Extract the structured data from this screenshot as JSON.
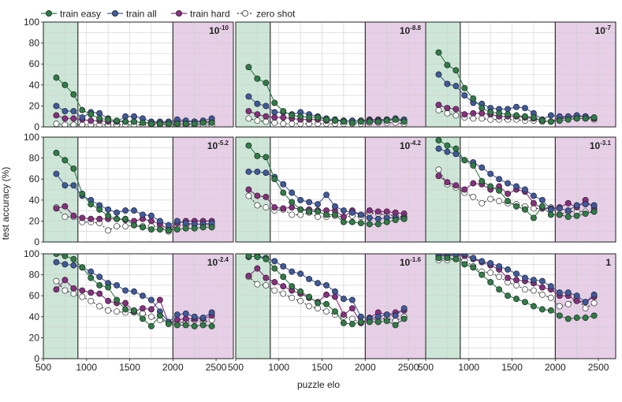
{
  "chart_data": {
    "type": "line",
    "layout": "3x3 grid of subplots",
    "xlabel": "puzzle elo",
    "ylabel": "test accuracy (%)",
    "xlim": [
      500,
      2700
    ],
    "ylim": [
      0,
      100
    ],
    "xticks": [
      500,
      1000,
      1500,
      2000,
      2500
    ],
    "yticks": [
      0,
      20,
      40,
      60,
      80,
      100
    ],
    "grid": true,
    "legend_position": "top-left, above plots",
    "shaded_regions": [
      {
        "from": 500,
        "to": 900,
        "color": "#cde6d7",
        "meaning_series": "train easy"
      },
      {
        "from": 2000,
        "to": 2700,
        "color": "#e7cfe7",
        "meaning_series": "train hard"
      }
    ],
    "legend": [
      {
        "label": "train easy",
        "color": "#2e7d46",
        "style": "solid"
      },
      {
        "label": "train all",
        "color": "#3f5a9e",
        "style": "solid"
      },
      {
        "label": "train hard",
        "color": "#8a2e82",
        "style": "solid"
      },
      {
        "label": "zero shot",
        "color": "#333333",
        "style": "dotted-open"
      }
    ],
    "x": [
      650,
      750,
      850,
      950,
      1050,
      1150,
      1250,
      1350,
      1450,
      1550,
      1650,
      1750,
      1850,
      1950,
      2050,
      2150,
      2250,
      2350,
      2450
    ],
    "panels": [
      {
        "label_base": "10",
        "label_exp": "-10",
        "series": [
          {
            "name": "train easy",
            "values": [
              47,
              40,
              31,
              16,
              12,
              8,
              7,
              6,
              5,
              5,
              4,
              3,
              3,
              3,
              3,
              3,
              3,
              4,
              4
            ]
          },
          {
            "name": "train all",
            "values": [
              20,
              15,
              15,
              9,
              14,
              13,
              8,
              5,
              10,
              10,
              8,
              5,
              5,
              5,
              7,
              6,
              5,
              6,
              8
            ]
          },
          {
            "name": "train hard",
            "values": [
              11,
              8,
              8,
              7,
              6,
              6,
              5,
              5,
              5,
              5,
              4,
              4,
              4,
              4,
              5,
              5,
              5,
              5,
              5
            ]
          },
          {
            "name": "zero shot",
            "values": [
              3,
              2,
              2,
              2,
              2,
              2,
              2,
              2,
              2,
              2,
              2,
              2,
              2,
              2,
              2,
              2,
              2,
              2,
              2
            ]
          }
        ]
      },
      {
        "label_base": "10",
        "label_exp": "-8.8",
        "series": [
          {
            "name": "train easy",
            "values": [
              57,
              46,
              42,
              23,
              15,
              11,
              10,
              9,
              9,
              7,
              6,
              5,
              4,
              5,
              5,
              5,
              6,
              7,
              5
            ]
          },
          {
            "name": "train all",
            "values": [
              29,
              22,
              20,
              14,
              14,
              12,
              14,
              12,
              10,
              8,
              7,
              6,
              6,
              6,
              6,
              6,
              7,
              8,
              7
            ]
          },
          {
            "name": "train hard",
            "values": [
              15,
              12,
              10,
              9,
              9,
              8,
              7,
              7,
              7,
              6,
              6,
              6,
              6,
              6,
              7,
              7,
              7,
              7,
              6
            ]
          },
          {
            "name": "zero shot",
            "values": [
              8,
              6,
              5,
              4,
              3,
              3,
              3,
              3,
              3,
              3,
              3,
              3,
              3,
              3,
              4,
              4,
              4,
              4,
              3
            ]
          }
        ]
      },
      {
        "label_base": "10",
        "label_exp": "-7",
        "series": [
          {
            "name": "train easy",
            "values": [
              71,
              59,
              54,
              37,
              27,
              18,
              14,
              13,
              12,
              11,
              10,
              9,
              6,
              5,
              6,
              7,
              8,
              8,
              9
            ]
          },
          {
            "name": "train all",
            "values": [
              50,
              41,
              39,
              30,
              23,
              22,
              18,
              17,
              17,
              19,
              18,
              13,
              7,
              11,
              10,
              10,
              11,
              10,
              9
            ]
          },
          {
            "name": "train hard",
            "values": [
              21,
              18,
              17,
              12,
              13,
              13,
              12,
              10,
              10,
              10,
              9,
              8,
              6,
              5,
              9,
              9,
              10,
              10,
              8
            ]
          },
          {
            "name": "zero shot",
            "values": [
              16,
              13,
              11,
              9,
              8,
              8,
              7,
              7,
              7,
              7,
              6,
              6,
              5,
              5,
              8,
              8,
              8,
              8,
              7
            ]
          }
        ]
      },
      {
        "label_base": "10",
        "label_exp": "-5.2",
        "series": [
          {
            "name": "train easy",
            "values": [
              85,
              78,
              70,
              46,
              36,
              31,
              25,
              22,
              22,
              16,
              14,
              12,
              12,
              11,
              12,
              13,
              13,
              14,
              14
            ]
          },
          {
            "name": "train all",
            "values": [
              65,
              54,
              54,
              44,
              40,
              35,
              31,
              28,
              30,
              30,
              26,
              25,
              20,
              16,
              20,
              18,
              17,
              17,
              18
            ]
          },
          {
            "name": "train hard",
            "values": [
              32,
              34,
              25,
              23,
              22,
              22,
              22,
              22,
              21,
              20,
              22,
              20,
              17,
              12,
              18,
              20,
              20,
              20,
              20
            ]
          },
          {
            "name": "zero shot",
            "values": [
              33,
              24,
              24,
              19,
              19,
              18,
              11,
              15,
              15,
              16,
              15,
              15,
              15,
              10,
              16,
              16,
              17,
              17,
              16
            ]
          }
        ]
      },
      {
        "label_base": "10",
        "label_exp": "-4.2",
        "series": [
          {
            "name": "train easy",
            "values": [
              92,
              82,
              81,
              60,
              47,
              38,
              31,
              29,
              29,
              26,
              26,
              19,
              19,
              18,
              17,
              17,
              19,
              21,
              22
            ]
          },
          {
            "name": "train all",
            "values": [
              67,
              67,
              66,
              62,
              55,
              47,
              40,
              38,
              36,
              45,
              34,
              30,
              28,
              26,
              23,
              22,
              23,
              23,
              23
            ]
          },
          {
            "name": "train hard",
            "values": [
              50,
              44,
              43,
              33,
              32,
              33,
              31,
              31,
              30,
              30,
              30,
              24,
              30,
              26,
              30,
              29,
              29,
              28,
              27
            ]
          },
          {
            "name": "zero shot",
            "values": [
              44,
              35,
              33,
              30,
              31,
              26,
              26,
              28,
              24,
              24,
              25,
              24,
              25,
              24,
              28,
              27,
              26,
              25,
              24
            ]
          }
        ]
      },
      {
        "label_base": "10",
        "label_exp": "-3.1",
        "series": [
          {
            "name": "train easy",
            "values": [
              97,
              92,
              89,
              78,
              73,
              58,
              53,
              49,
              39,
              34,
              31,
              23,
              34,
              26,
              26,
              24,
              25,
              27,
              29
            ]
          },
          {
            "name": "train all",
            "values": [
              89,
              86,
              84,
              78,
              76,
              71,
              65,
              60,
              56,
              53,
              50,
              44,
              40,
              31,
              32,
              30,
              35,
              36,
              35
            ]
          },
          {
            "name": "train hard",
            "values": [
              63,
              57,
              54,
              50,
              56,
              55,
              50,
              53,
              46,
              50,
              48,
              37,
              32,
              32,
              33,
              37,
              33,
              40,
              32
            ]
          },
          {
            "name": "zero shot",
            "values": [
              69,
              55,
              52,
              47,
              43,
              37,
              41,
              39,
              37,
              36,
              34,
              32,
              32,
              33,
              26,
              29,
              29,
              29,
              29
            ]
          }
        ]
      },
      {
        "label_base": "10",
        "label_exp": "-2.4",
        "series": [
          {
            "name": "train easy",
            "values": [
              100,
              98,
              95,
              87,
              77,
              70,
              68,
              56,
              47,
              46,
              38,
              31,
              41,
              33,
              32,
              32,
              31,
              32,
              31
            ]
          },
          {
            "name": "train all",
            "values": [
              92,
              90,
              89,
              87,
              83,
              78,
              72,
              70,
              65,
              64,
              60,
              56,
              45,
              35,
              42,
              43,
              40,
              39,
              44
            ]
          },
          {
            "name": "train hard",
            "values": [
              66,
              75,
              67,
              65,
              63,
              62,
              55,
              53,
              53,
              45,
              48,
              47,
              56,
              34,
              37,
              38,
              38,
              38,
              41
            ]
          },
          {
            "name": "zero shot",
            "values": [
              74,
              65,
              62,
              59,
              55,
              50,
              46,
              45,
              44,
              44,
              43,
              40,
              37,
              34,
              34,
              35,
              37,
              35,
              37
            ]
          }
        ]
      },
      {
        "label_base": "10",
        "label_exp": "-1.6",
        "series": [
          {
            "name": "train easy",
            "values": [
              98,
              97,
              95,
              86,
              78,
              69,
              64,
              59,
              53,
              52,
              45,
              34,
              33,
              35,
              35,
              35,
              36,
              32,
              38
            ]
          },
          {
            "name": "train all",
            "values": [
              97,
              98,
              96,
              93,
              88,
              83,
              81,
              76,
              72,
              70,
              64,
              57,
              56,
              40,
              38,
              40,
              42,
              41,
              48
            ]
          },
          {
            "name": "train hard",
            "values": [
              79,
              86,
              77,
              73,
              69,
              65,
              62,
              58,
              54,
              61,
              59,
              42,
              48,
              34,
              39,
              44,
              42,
              44,
              46
            ]
          },
          {
            "name": "zero shot",
            "values": [
              78,
              71,
              70,
              65,
              62,
              58,
              55,
              50,
              48,
              45,
              42,
              40,
              38,
              34,
              36,
              38,
              38,
              36,
              40
            ]
          }
        ]
      },
      {
        "label_base": "1",
        "label_exp": "",
        "series": [
          {
            "name": "train easy",
            "values": [
              96,
              96,
              95,
              90,
              87,
              80,
              73,
              66,
              60,
              57,
              54,
              50,
              47,
              46,
              41,
              38,
              39,
              39,
              41
            ]
          },
          {
            "name": "train all",
            "values": [
              99,
              99,
              99,
              100,
              96,
              93,
              91,
              88,
              85,
              81,
              77,
              75,
              74,
              69,
              63,
              63,
              60,
              54,
              61
            ]
          },
          {
            "name": "train hard",
            "values": [
              98,
              98,
              99,
              98,
              95,
              92,
              89,
              85,
              77,
              75,
              74,
              72,
              68,
              66,
              60,
              60,
              55,
              54,
              59
            ]
          },
          {
            "name": "zero shot",
            "values": [
              94,
              94,
              95,
              94,
              88,
              83,
              82,
              78,
              73,
              70,
              66,
              65,
              61,
              58,
              50,
              52,
              58,
              48,
              53
            ]
          }
        ]
      }
    ]
  }
}
